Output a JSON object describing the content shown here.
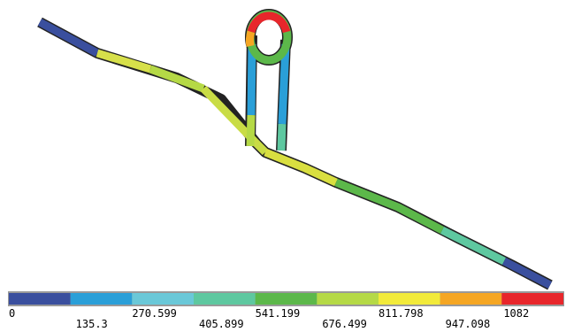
{
  "legend": {
    "colors": [
      "#3a4f9e",
      "#2a9fd8",
      "#6ac8d8",
      "#5ec8a0",
      "#5cb84a",
      "#b5d946",
      "#f2ea3a",
      "#f5a623",
      "#e8262b"
    ],
    "labels": [
      "0",
      "135.3",
      "270.599",
      "405.899",
      "541.199",
      "676.499",
      "811.798",
      "947.098",
      "1082"
    ]
  }
}
